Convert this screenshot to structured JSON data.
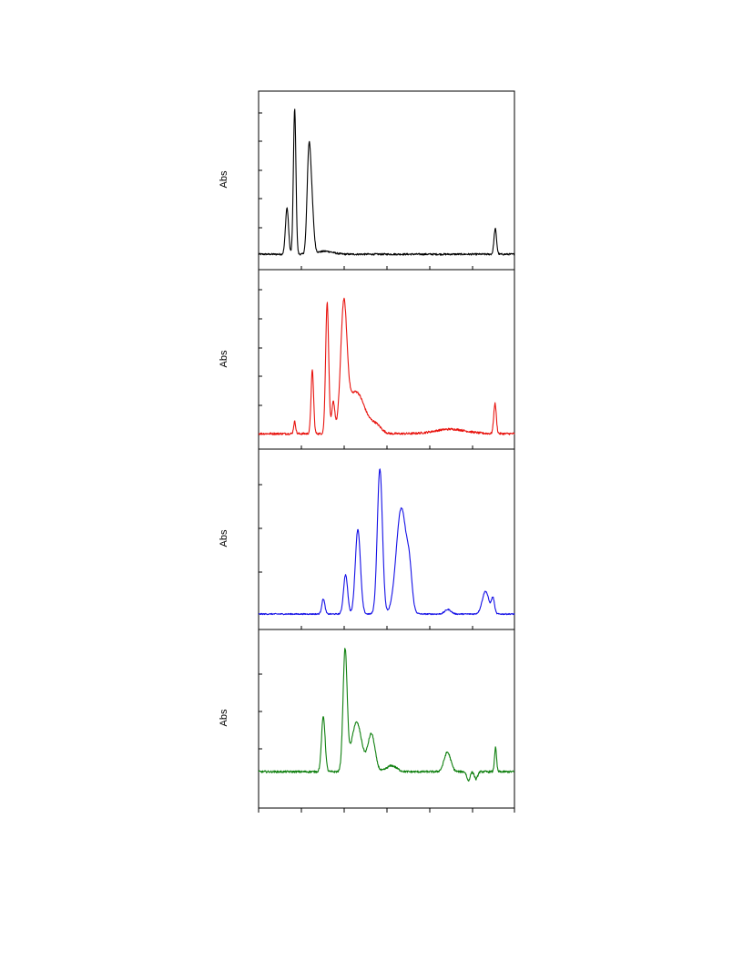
{
  "chart_data": [
    {
      "type": "line",
      "ylabel": "Abs",
      "grid": false,
      "series": [
        {
          "color": "#000000",
          "baseline": 0.03,
          "noise": 0.006,
          "peaks": [
            {
              "x": 0.111,
              "h": 0.31,
              "w": 0.006
            },
            {
              "x": 0.141,
              "h": 0.97,
              "w": 0.005
            },
            {
              "x": 0.196,
              "h": 0.6,
              "w": 0.007
            },
            {
              "x": 0.207,
              "h": 0.33,
              "w": 0.008
            },
            {
              "x": 0.26,
              "h": 0.02,
              "w": 0.03
            },
            {
              "x": 0.925,
              "h": 0.17,
              "w": 0.005
            }
          ]
        }
      ]
    },
    {
      "type": "line",
      "ylabel": "Abs",
      "grid": false,
      "series": [
        {
          "color": "#e8140f",
          "baseline": 0.03,
          "noise": 0.007,
          "peaks": [
            {
              "x": 0.141,
              "h": 0.08,
              "w": 0.004
            },
            {
              "x": 0.21,
              "h": 0.42,
              "w": 0.005
            },
            {
              "x": 0.268,
              "h": 0.87,
              "w": 0.006
            },
            {
              "x": 0.292,
              "h": 0.2,
              "w": 0.006
            },
            {
              "x": 0.333,
              "h": 0.78,
              "w": 0.012
            },
            {
              "x": 0.38,
              "h": 0.28,
              "w": 0.035
            },
            {
              "x": 0.46,
              "h": 0.05,
              "w": 0.02
            },
            {
              "x": 0.75,
              "h": 0.03,
              "w": 0.06
            },
            {
              "x": 0.924,
              "h": 0.2,
              "w": 0.005
            }
          ]
        }
      ]
    },
    {
      "type": "line",
      "ylabel": "Abs",
      "grid": false,
      "series": [
        {
          "color": "#1410e6",
          "baseline": 0.03,
          "noise": 0.004,
          "peaks": [
            {
              "x": 0.253,
              "h": 0.1,
              "w": 0.006
            },
            {
              "x": 0.34,
              "h": 0.26,
              "w": 0.008
            },
            {
              "x": 0.388,
              "h": 0.56,
              "w": 0.01
            },
            {
              "x": 0.474,
              "h": 0.96,
              "w": 0.01
            },
            {
              "x": 0.558,
              "h": 0.7,
              "w": 0.02
            },
            {
              "x": 0.59,
              "h": 0.2,
              "w": 0.01
            },
            {
              "x": 0.74,
              "h": 0.03,
              "w": 0.012
            },
            {
              "x": 0.887,
              "h": 0.15,
              "w": 0.013
            },
            {
              "x": 0.916,
              "h": 0.1,
              "w": 0.006
            }
          ]
        }
      ]
    },
    {
      "type": "line",
      "ylabel": "Abs",
      "grid": false,
      "series": [
        {
          "color": "#108010",
          "baseline": 0.17,
          "noise": 0.007,
          "peaks": [
            {
              "x": 0.253,
              "h": 0.37,
              "w": 0.007
            },
            {
              "x": 0.338,
              "h": 0.8,
              "w": 0.008
            },
            {
              "x": 0.383,
              "h": 0.33,
              "w": 0.02
            },
            {
              "x": 0.441,
              "h": 0.25,
              "w": 0.014
            },
            {
              "x": 0.52,
              "h": 0.04,
              "w": 0.02
            },
            {
              "x": 0.738,
              "h": 0.13,
              "w": 0.013
            },
            {
              "x": 0.82,
              "h": -0.06,
              "w": 0.006
            },
            {
              "x": 0.85,
              "h": -0.05,
              "w": 0.006
            },
            {
              "x": 0.926,
              "h": 0.16,
              "w": 0.004
            }
          ]
        }
      ]
    }
  ]
}
